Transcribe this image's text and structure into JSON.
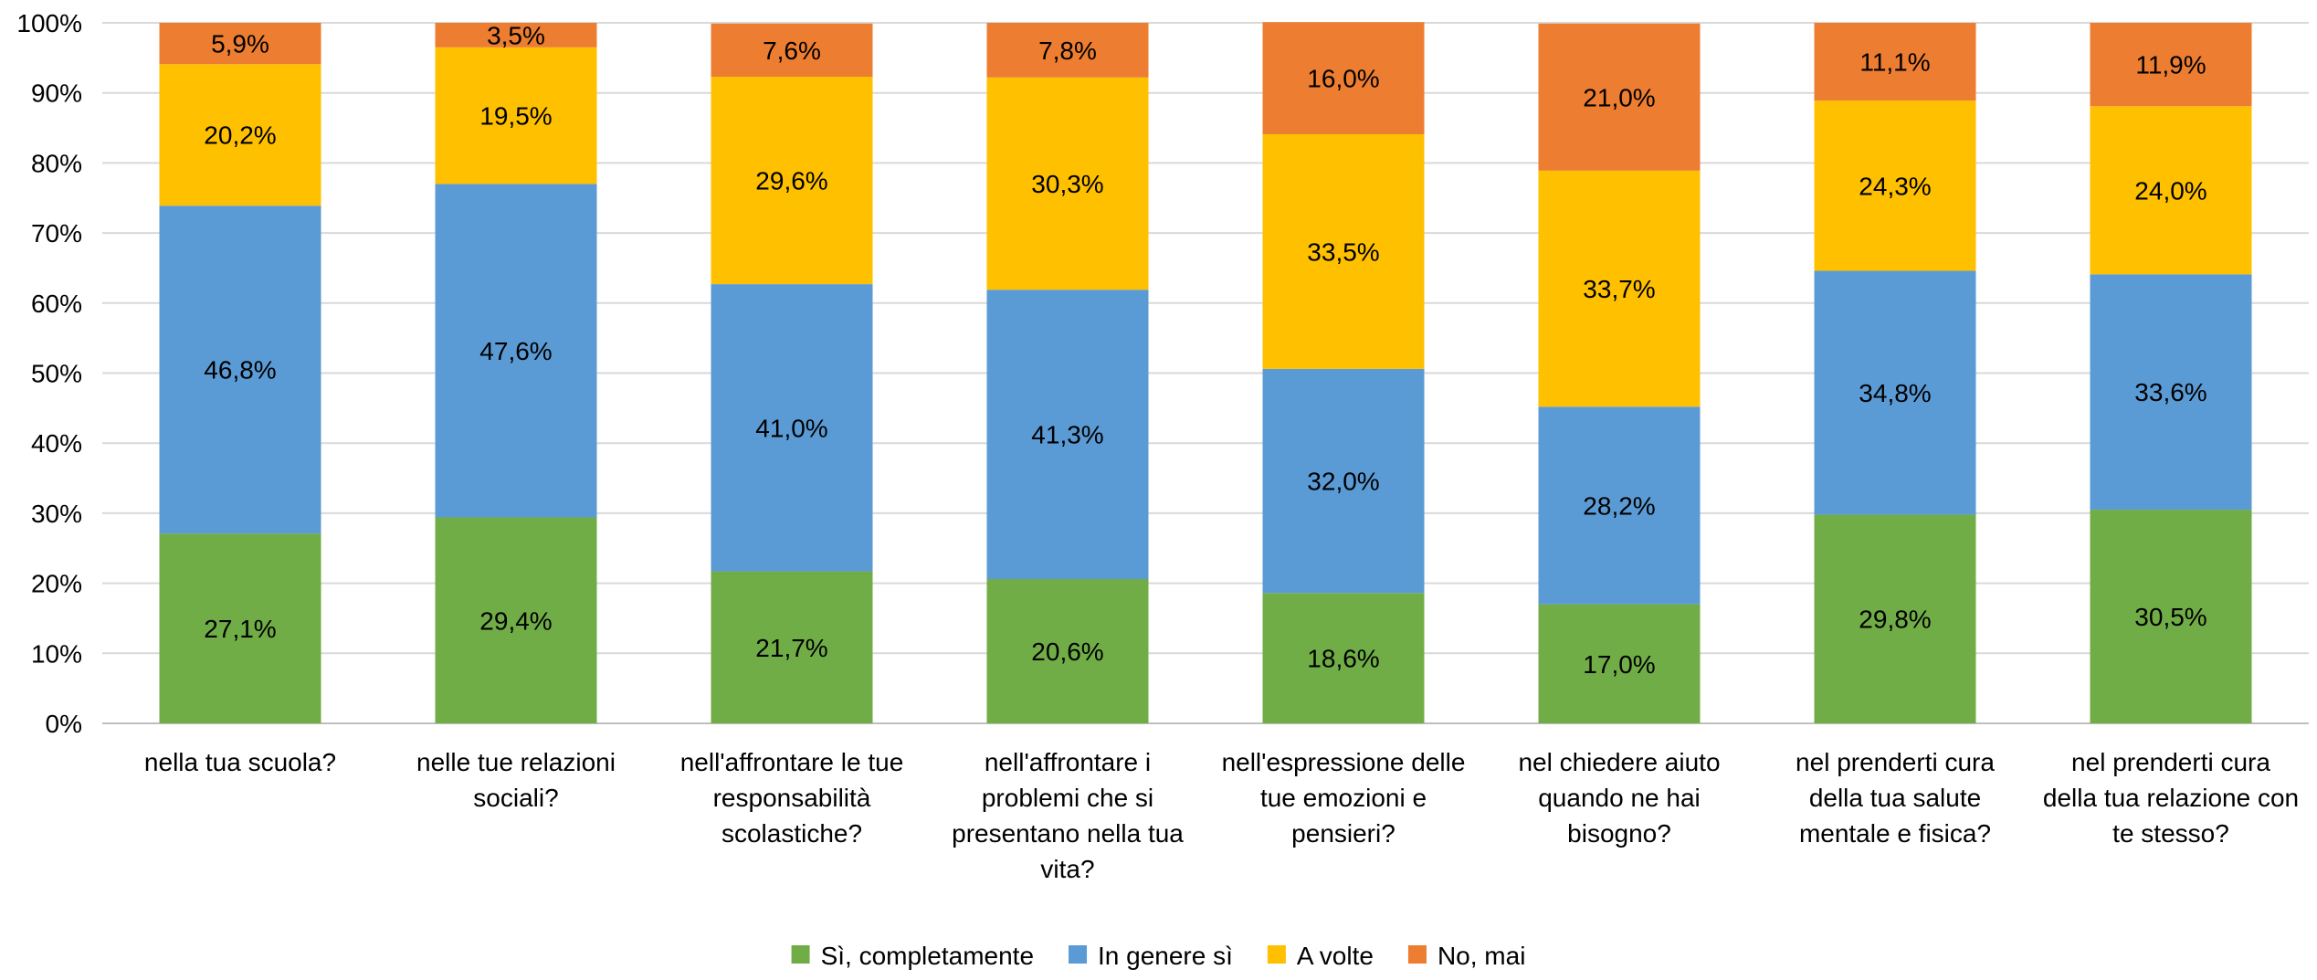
{
  "chart_data": {
    "type": "bar",
    "stacked": "percent",
    "title": "",
    "xlabel": "",
    "ylabel": "",
    "ylim": [
      0,
      100
    ],
    "y_ticks": [
      "0%",
      "10%",
      "20%",
      "30%",
      "40%",
      "50%",
      "60%",
      "70%",
      "80%",
      "90%",
      "100%"
    ],
    "grid": true,
    "legend_position": "bottom",
    "categories": [
      "nella tua scuola?",
      "nelle tue relazioni sociali?",
      "nell'affrontare le tue responsabilità scolastiche?",
      "nell'affrontare i problemi che si presentano nella tua vita?",
      "nell'espressione delle tue emozioni e pensieri?",
      "nel chiedere aiuto quando ne hai bisogno?",
      "nel prenderti cura della tua salute mentale e fisica?",
      "nel prenderti cura della tua relazione con te stesso?"
    ],
    "category_lines": [
      [
        "nella tua scuola?"
      ],
      [
        "nelle tue relazioni",
        "sociali?"
      ],
      [
        "nell'affrontare le tue",
        "responsabilità",
        "scolastiche?"
      ],
      [
        "nell'affrontare i",
        "problemi che si",
        "presentano nella tua",
        "vita?"
      ],
      [
        "nell'espressione delle",
        "tue emozioni e",
        "pensieri?"
      ],
      [
        "nel chiedere aiuto",
        "quando ne hai",
        "bisogno?"
      ],
      [
        "nel prenderti cura",
        "della tua salute",
        "mentale e fisica?"
      ],
      [
        "nel prenderti cura",
        "della tua relazione con",
        "te stesso?"
      ]
    ],
    "series": [
      {
        "name": "Sì, completamente",
        "color": "#70AD47",
        "values": [
          27.1,
          29.4,
          21.7,
          20.6,
          18.6,
          17.0,
          29.8,
          30.5
        ],
        "labels": [
          "27,1%",
          "29,4%",
          "21,7%",
          "20,6%",
          "18,6%",
          "17,0%",
          "29,8%",
          "30,5%"
        ]
      },
      {
        "name": "In genere sì",
        "color": "#5B9BD5",
        "values": [
          46.8,
          47.6,
          41.0,
          41.3,
          32.0,
          28.2,
          34.8,
          33.6
        ],
        "labels": [
          "46,8%",
          "47,6%",
          "41,0%",
          "41,3%",
          "32,0%",
          "28,2%",
          "34,8%",
          "33,6%"
        ]
      },
      {
        "name": "A volte",
        "color": "#FFC000",
        "values": [
          20.2,
          19.5,
          29.6,
          30.3,
          33.5,
          33.7,
          24.3,
          24.0
        ],
        "labels": [
          "20,2%",
          "19,5%",
          "29,6%",
          "30,3%",
          "33,5%",
          "33,7%",
          "24,3%",
          "24,0%"
        ]
      },
      {
        "name": "No, mai",
        "color": "#ED7D31",
        "values": [
          5.9,
          3.5,
          7.6,
          7.8,
          16.0,
          21.0,
          11.1,
          11.9
        ],
        "labels": [
          "5,9%",
          "3,5%",
          "7,6%",
          "7,8%",
          "16,0%",
          "21,0%",
          "11,1%",
          "11,9%"
        ]
      }
    ],
    "colors": {
      "gridline": "#D9D9D9",
      "axis": "#BFBFBF",
      "text": "#000000"
    }
  }
}
